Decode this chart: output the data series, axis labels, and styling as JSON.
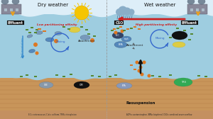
{
  "dry_weather_label": "Dry weather",
  "wet_weather_label": "Wet weather",
  "low_partitioning": "Low partitioning affinity",
  "high_partitioning": "High partitioning affinity",
  "effluent_label": "Effluent",
  "cso_label": "CSO",
  "sedimentation_label": "Sedimentation",
  "mixing_label": "Mixing",
  "attachment_label": "Attachment",
  "resuspension_label": "Resuspension",
  "legend_left": "E.C= enterococcus; C.di= coliform; TRIS= trisophoton",
  "legend_right": "ACPh= acetaminophen; BPA= bisphenol; CSO= combined sewer overflow",
  "sky_color": "#ddeef8",
  "water_color": "#9ecde0",
  "sediment_color": "#c8955a",
  "sediment_dark": "#b07840",
  "legend_bg": "#c49060",
  "sun_color": "#f5c500",
  "sun_ray_color": "#f5c500",
  "cloud_color": "#8aaec8",
  "rain_color": "#5580aa",
  "factory_body": "#888899",
  "factory_tank": "#778899",
  "factory_window": "#aabbc8",
  "effluent_arrow": "#e8a020",
  "cso_arrow": "#cc2020",
  "label_box_bg": "#111111",
  "label_box_text": "#ffffff",
  "low_part_color": "#cc2020",
  "high_part_color": "#cc2020",
  "mix_arrow_color": "#3366cc",
  "sed_arrow_color": "#3388cc",
  "resus_arrow_color": "#111111",
  "divider_color": "#999999",
  "ecoli_blue": "#7799bb",
  "ecoli_dark": "#334466",
  "ecoli_mid": "#5588bb",
  "ecoli_light": "#99bbdd",
  "particle_orange": "#dd7722",
  "particle_green": "#558833",
  "particle_yellow": "#ddcc44",
  "particle_teal": "#558899",
  "blob_black": "#111111",
  "blob_grey": "#8899aa",
  "blob_green_large": "#33aa55",
  "blob_teal_sed": "#8899bb"
}
